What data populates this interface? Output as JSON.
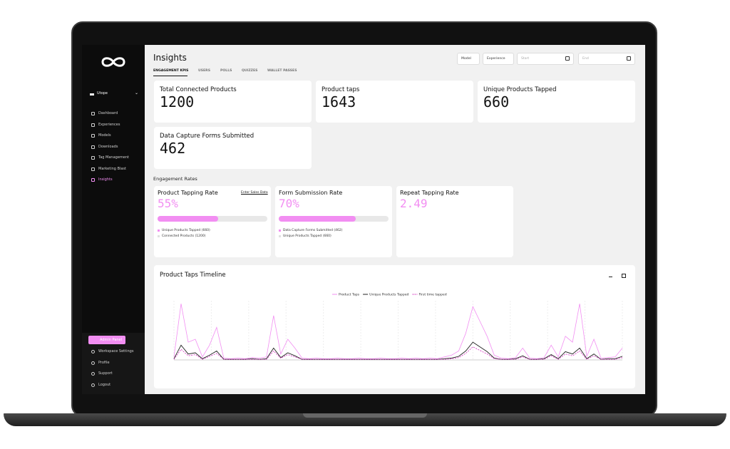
{
  "sidebar": {
    "workspace": "Utope",
    "nav": [
      "Dashboard",
      "Experiences",
      "Models",
      "Downloads",
      "Tag Management",
      "Marketing Blast",
      "Insights"
    ],
    "active_nav": 6,
    "admin_button": "Admin Panel",
    "bottom": [
      "Workspace Settings",
      "Profile",
      "Support",
      "Logout"
    ]
  },
  "header": {
    "title": "Insights",
    "tabs": [
      "ENGAGEMENT KPIS",
      "USERS",
      "POLLS",
      "QUIZZES",
      "WALLET PASSES"
    ],
    "active_tab": 0,
    "filters": [
      "Model",
      "Experience"
    ],
    "date_fields": [
      "Start",
      "End"
    ]
  },
  "kpis": [
    {
      "label": "Total Connected Products",
      "value": 1200
    },
    {
      "label": "Product taps",
      "value": 1643
    },
    {
      "label": "Unique Products Tapped",
      "value": 660
    },
    {
      "label": "Data Capture Forms Submitted",
      "value": 462
    }
  ],
  "rates": {
    "title": "Engagement Rates",
    "cards": [
      {
        "label": "Product Tapping Rate",
        "value": 55,
        "value_label": "55%",
        "link": "Enter Sales Data",
        "legend": [
          "Unique Products Tapped (660)",
          "Connected Products (1200)"
        ]
      },
      {
        "label": "Form Submission Rate",
        "value": 70,
        "value_label": "70%",
        "legend": [
          "Data Capture Forms Submitted (462)",
          "Unique Products Tapped (660)"
        ]
      },
      {
        "label": "Repeat Tapping Rate",
        "value": 2.49
      }
    ]
  },
  "timeline": {
    "type": "line",
    "title": "Product Taps Timeline",
    "ylim": [
      0,
      100
    ],
    "series": [
      {
        "name": "Product Taps",
        "color": "#f28ef2",
        "values": [
          5,
          95,
          30,
          35,
          5,
          25,
          55,
          3,
          2,
          3,
          2,
          4,
          3,
          5,
          75,
          10,
          35,
          20,
          3,
          2,
          3,
          2,
          2,
          3,
          2,
          2,
          3,
          2,
          2,
          3,
          2,
          2,
          3,
          2,
          3,
          2,
          3,
          2,
          5,
          8,
          15,
          45,
          90,
          65,
          40,
          8,
          3,
          2,
          4,
          20,
          3,
          2,
          4,
          25,
          5,
          40,
          30,
          95,
          6,
          35,
          3,
          4,
          5,
          20
        ]
      },
      {
        "name": "Unique Products Tapped",
        "color": "#222222",
        "values": [
          2,
          25,
          10,
          12,
          2,
          8,
          15,
          1,
          1,
          1,
          1,
          2,
          1,
          2,
          20,
          4,
          12,
          7,
          1,
          1,
          1,
          1,
          1,
          1,
          1,
          1,
          1,
          1,
          1,
          1,
          1,
          1,
          1,
          1,
          1,
          1,
          1,
          1,
          2,
          3,
          6,
          15,
          30,
          22,
          14,
          3,
          1,
          1,
          2,
          7,
          1,
          1,
          2,
          9,
          2,
          14,
          10,
          20,
          2,
          10,
          1,
          2,
          2,
          6
        ]
      },
      {
        "name": "First time tapped",
        "color": "#d63fc4",
        "dashed": true,
        "values": [
          1,
          18,
          7,
          9,
          1,
          6,
          11,
          1,
          1,
          1,
          1,
          1,
          1,
          1,
          15,
          3,
          9,
          5,
          1,
          1,
          1,
          1,
          1,
          1,
          1,
          1,
          1,
          1,
          1,
          1,
          1,
          1,
          1,
          1,
          1,
          1,
          1,
          1,
          1,
          2,
          4,
          11,
          22,
          16,
          10,
          2,
          1,
          1,
          1,
          5,
          1,
          1,
          1,
          7,
          1,
          10,
          7,
          15,
          1,
          7,
          1,
          1,
          1,
          4
        ]
      }
    ]
  }
}
